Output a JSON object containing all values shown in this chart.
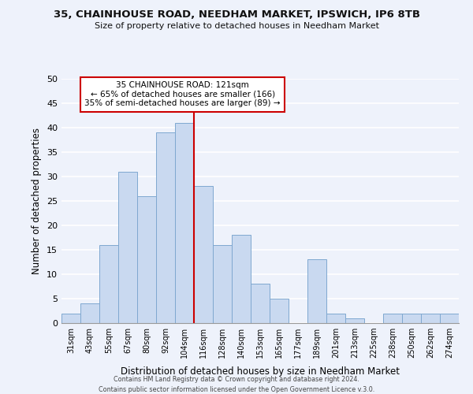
{
  "title1": "35, CHAINHOUSE ROAD, NEEDHAM MARKET, IPSWICH, IP6 8TB",
  "title2": "Size of property relative to detached houses in Needham Market",
  "xlabel": "Distribution of detached houses by size in Needham Market",
  "ylabel": "Number of detached properties",
  "bin_labels": [
    "31sqm",
    "43sqm",
    "55sqm",
    "67sqm",
    "80sqm",
    "92sqm",
    "104sqm",
    "116sqm",
    "128sqm",
    "140sqm",
    "153sqm",
    "165sqm",
    "177sqm",
    "189sqm",
    "201sqm",
    "213sqm",
    "225sqm",
    "238sqm",
    "250sqm",
    "262sqm",
    "274sqm"
  ],
  "bar_heights": [
    2,
    4,
    16,
    31,
    26,
    39,
    41,
    28,
    16,
    18,
    8,
    5,
    0,
    13,
    2,
    1,
    0,
    2,
    2,
    2,
    2
  ],
  "bar_color": "#c9d9f0",
  "bar_edge_color": "#7fa8d0",
  "ylim": [
    0,
    50
  ],
  "yticks": [
    0,
    5,
    10,
    15,
    20,
    25,
    30,
    35,
    40,
    45,
    50
  ],
  "vline_x_index": 6.5,
  "vline_color": "#cc0000",
  "annotation_title": "35 CHAINHOUSE ROAD: 121sqm",
  "annotation_line1": "← 65% of detached houses are smaller (166)",
  "annotation_line2": "35% of semi-detached houses are larger (89) →",
  "footer1": "Contains HM Land Registry data © Crown copyright and database right 2024.",
  "footer2": "Contains public sector information licensed under the Open Government Licence v.3.0.",
  "background_color": "#eef2fb"
}
